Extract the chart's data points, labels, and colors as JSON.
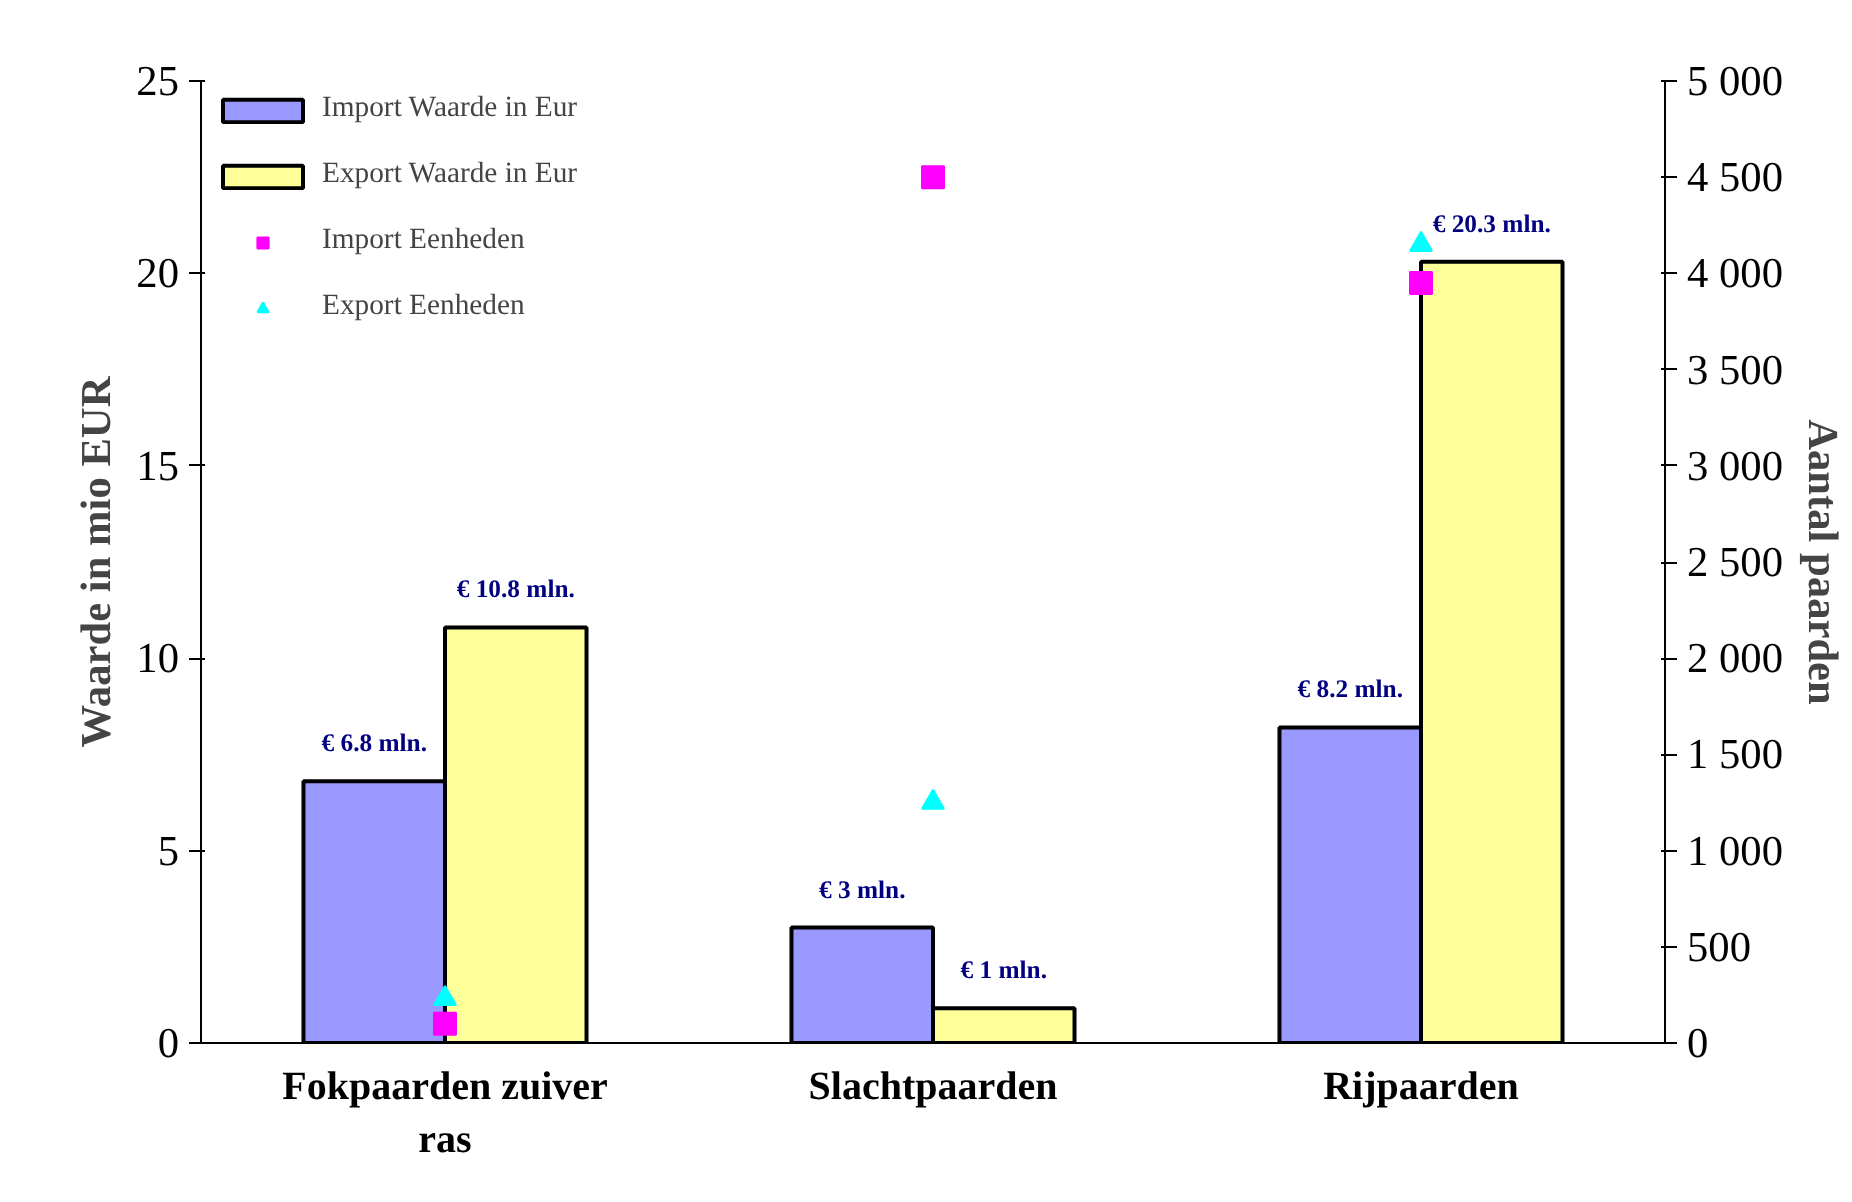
{
  "chart_data": {
    "type": "bar",
    "categories": [
      "Fokpaarden zuiver ras",
      "Slachtpaarden",
      "Rijpaarden"
    ],
    "ylabel": "Waarde in mio EUR",
    "y2label": "Aantal paarden",
    "ylim": [
      0,
      25
    ],
    "yticks": [
      0,
      5,
      10,
      15,
      20,
      25
    ],
    "y2lim": [
      0,
      5000
    ],
    "y2ticks": [
      0,
      {
        "value": 500,
        "label": "500"
      },
      {
        "value": 1000,
        "label": "1 000"
      },
      {
        "value": 1500,
        "label": "1 500"
      },
      {
        "value": 2000,
        "label": "2 000"
      },
      {
        "value": 2500,
        "label": "2 500"
      },
      {
        "value": 3000,
        "label": "3 000"
      },
      {
        "value": 3500,
        "label": "3 500"
      },
      {
        "value": 4000,
        "label": "4 000"
      },
      {
        "value": 4500,
        "label": "4 500"
      },
      {
        "value": 5000,
        "label": "5 000"
      }
    ],
    "grid": false,
    "legend": "top left",
    "series": [
      {
        "name": "Import Waarde in Eur",
        "color": "#9999ff",
        "values": [
          6.8,
          3,
          8.2
        ],
        "value_labels": [
          "€ 6.8 mln.",
          "€ 3 mln.",
          "€ 8.2 mln."
        ]
      },
      {
        "name": "Export Waarde in Eur",
        "color": "#ffff99",
        "values": [
          10.8,
          0.9,
          20.3
        ],
        "value_labels": [
          "€ 10.8 mln.",
          "€ 1 mln.",
          "€ 20.3 mln."
        ]
      },
      {
        "name": "Import Eenheden",
        "type": "scatter",
        "axis": "y2",
        "marker": "square",
        "color": "#ff00ff",
        "x": [
          "Fokpaarden zuiver ras",
          "Slachtpaarden",
          "Rijpaarden"
        ],
        "values": [
          100,
          4500,
          3950
        ]
      },
      {
        "name": "Export Eenheden",
        "type": "scatter",
        "axis": "y2",
        "marker": "triangle",
        "color": "#00ffff",
        "x": [
          "Fokpaarden zuiver ras",
          "Slachtpaarden",
          "Rijpaarden"
        ],
        "values": [
          230,
          1250,
          4150
        ]
      }
    ]
  }
}
